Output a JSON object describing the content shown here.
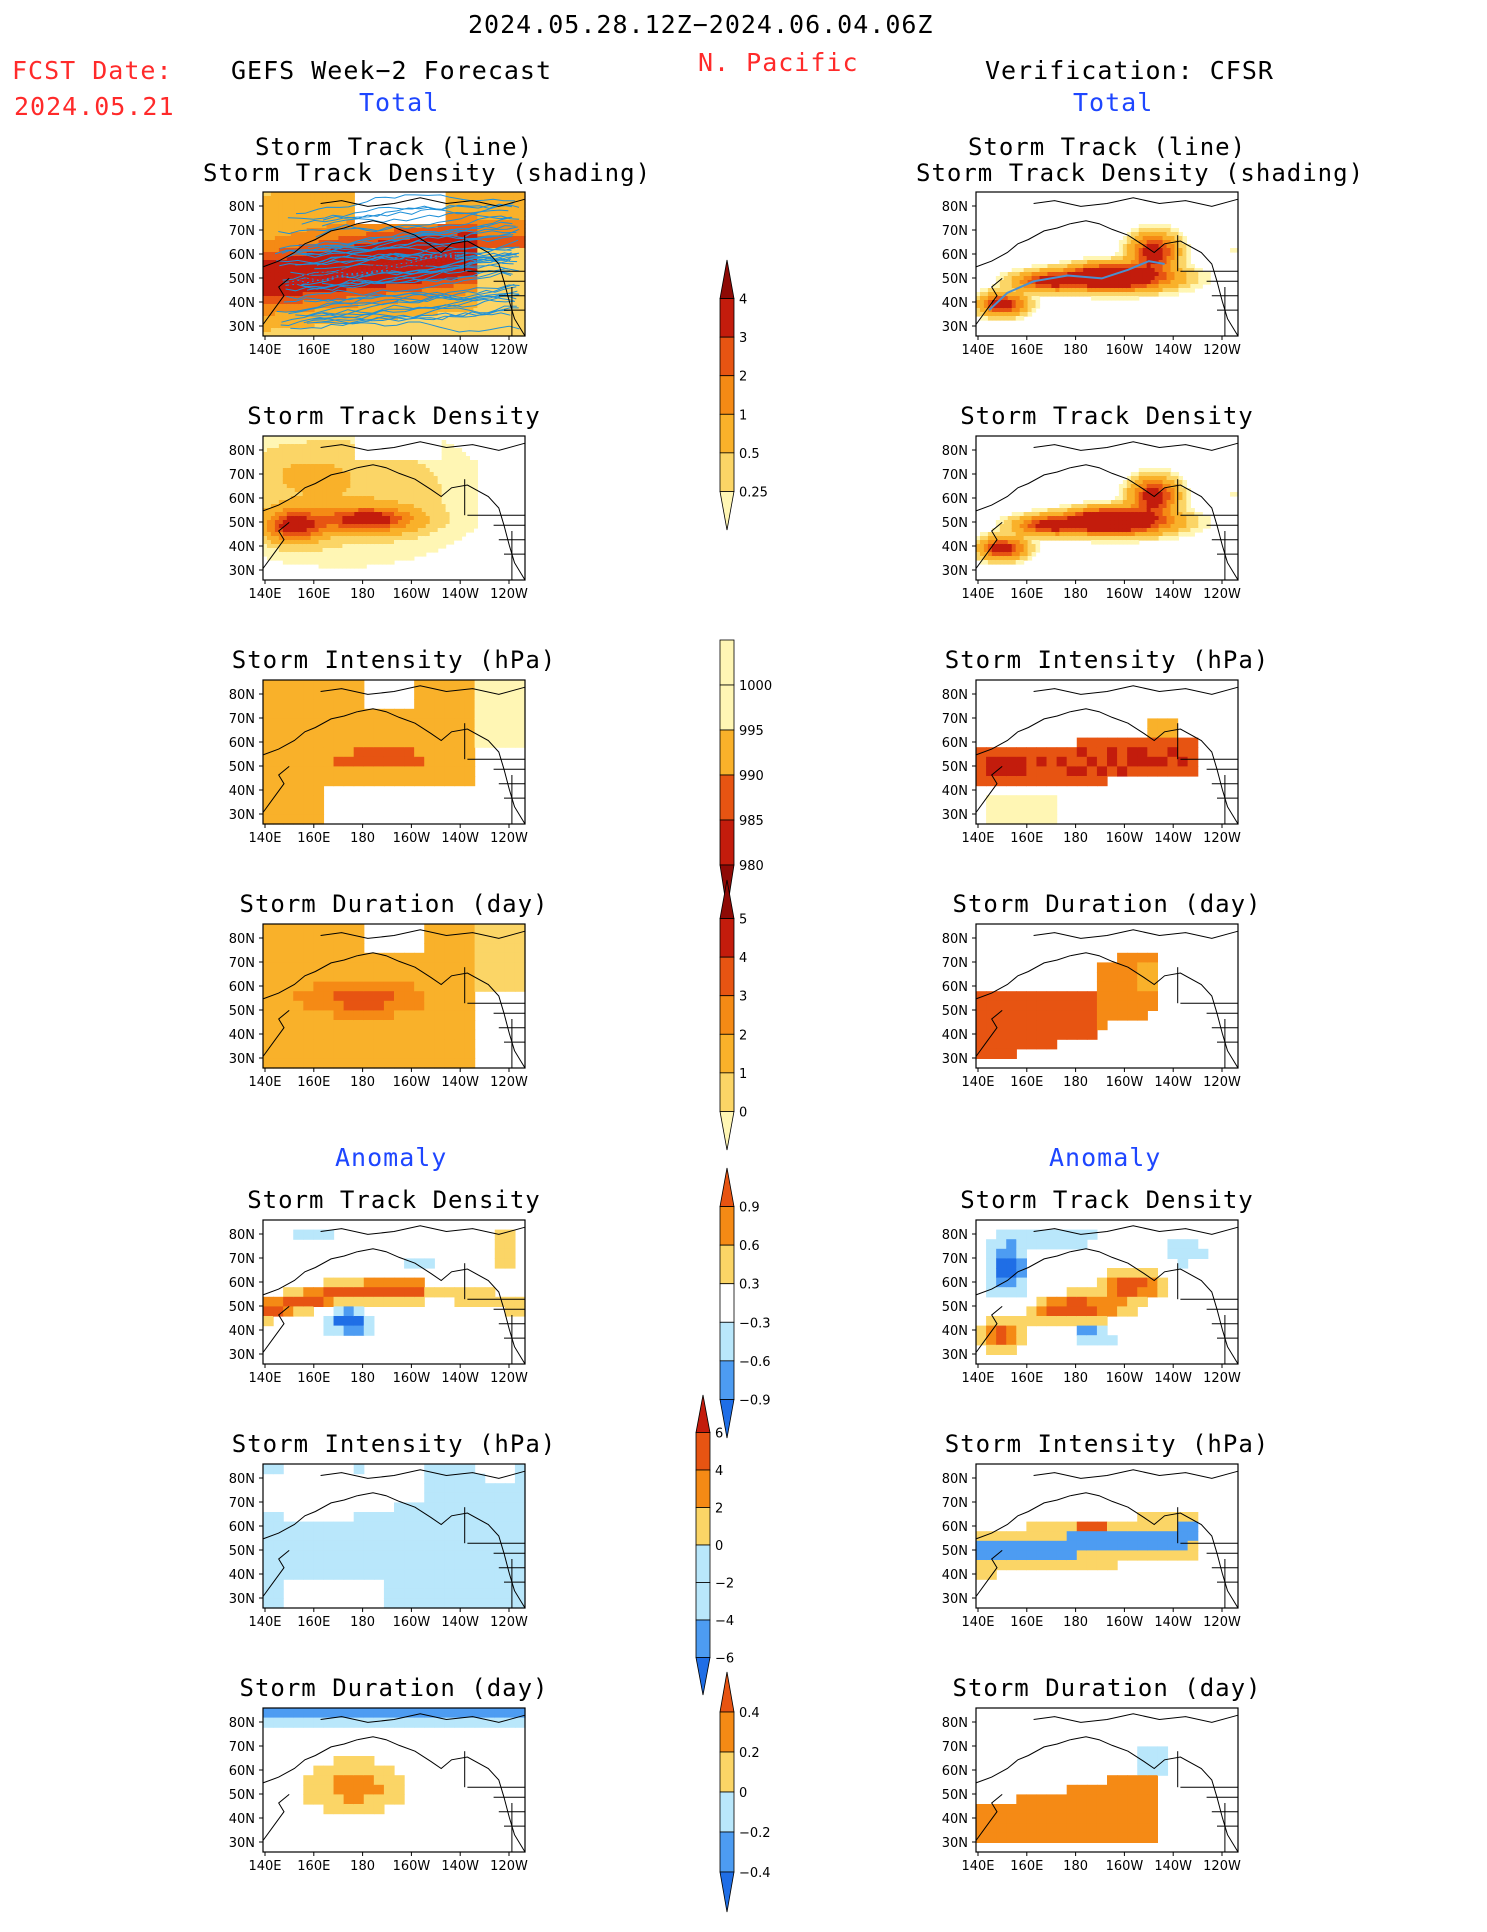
{
  "header": {
    "date_range": "2024.05.28.12Z−2024.06.04.06Z",
    "fcst_label": "FCST Date:",
    "fcst_date": "2024.05.21",
    "left_title": "GEFS Week−2 Forecast",
    "region": "N. Pacific",
    "right_title": "Verification: CFSR",
    "total_left": "Total",
    "total_right": "Total",
    "anomaly_left": "Anomaly",
    "anomaly_right": "Anomaly"
  },
  "colors": {
    "d1": "#fff6b4",
    "d2": "#fbd566",
    "d3": "#f9b12a",
    "d4": "#f58a15",
    "d5": "#e75412",
    "d6": "#c31c0c",
    "d7": "#8e0a06",
    "a_neg3": "#1f6ee6",
    "a_neg2": "#4d9cf2",
    "a_neg1": "#b9e7fb",
    "track": "#1e90d8"
  },
  "map_axes": {
    "x_ticks": [
      "140E",
      "160E",
      "180",
      "160W",
      "140W",
      "120W"
    ],
    "y_ticks": [
      "80N",
      "70N",
      "60N",
      "50N",
      "40N",
      "30N"
    ]
  },
  "colorbars": [
    {
      "id": "density",
      "labels": [
        "4",
        "3",
        "2",
        "1",
        "0.5",
        "0.25"
      ]
    },
    {
      "id": "intensity",
      "labels": [
        "1000",
        "995",
        "990",
        "985",
        "980"
      ]
    },
    {
      "id": "duration",
      "labels": [
        "5",
        "4",
        "3",
        "2",
        "1",
        "0"
      ]
    },
    {
      "id": "density_anom",
      "labels": [
        "0.9",
        "0.6",
        "0.3",
        "−0.3",
        "−0.6",
        "−0.9"
      ]
    },
    {
      "id": "intensity_anom",
      "labels": [
        "6",
        "4",
        "2",
        "0",
        "−2",
        "−4",
        "−6"
      ]
    },
    {
      "id": "duration_anom",
      "labels": [
        "0.4",
        "0.2",
        "0",
        "−0.2",
        "−0.4"
      ]
    }
  ],
  "panels": [
    {
      "id": "fc-track",
      "title1": "Storm Track (line)",
      "title2": "Storm Track Density (shading)",
      "field": "fc_track",
      "tracks": "fc"
    },
    {
      "id": "vf-track",
      "title1": "Storm Track (line)",
      "title2": "Storm Track Density (shading)",
      "field": "vf_track",
      "tracks": "vf"
    },
    {
      "id": "fc-density",
      "title1": "Storm Track Density",
      "field": "fc_dens"
    },
    {
      "id": "vf-density",
      "title1": "Storm Track Density",
      "field": "vf_track"
    },
    {
      "id": "fc-intensity",
      "title1": "Storm Intensity (hPa)",
      "field": "fc_int"
    },
    {
      "id": "vf-intensity",
      "title1": "Storm Intensity (hPa)",
      "field": "vf_int"
    },
    {
      "id": "fc-duration",
      "title1": "Storm Duration (day)",
      "field": "fc_dur"
    },
    {
      "id": "vf-duration",
      "title1": "Storm Duration (day)",
      "field": "vf_dur"
    },
    {
      "id": "fc-density-anom",
      "title1": "Storm Track Density",
      "field": "fc_dens_anom"
    },
    {
      "id": "vf-density-anom",
      "title1": "Storm Track Density",
      "field": "vf_dens_anom"
    },
    {
      "id": "fc-intensity-anom",
      "title1": "Storm Intensity (hPa)",
      "field": "fc_int_anom"
    },
    {
      "id": "vf-intensity-anom",
      "title1": "Storm Intensity (hPa)",
      "field": "vf_int_anom"
    },
    {
      "id": "fc-duration-anom",
      "title1": "Storm Duration (day)",
      "field": "fc_dur_anom"
    },
    {
      "id": "vf-duration-anom",
      "title1": "Storm Duration (day)",
      "field": "vf_dur_anom"
    }
  ]
}
